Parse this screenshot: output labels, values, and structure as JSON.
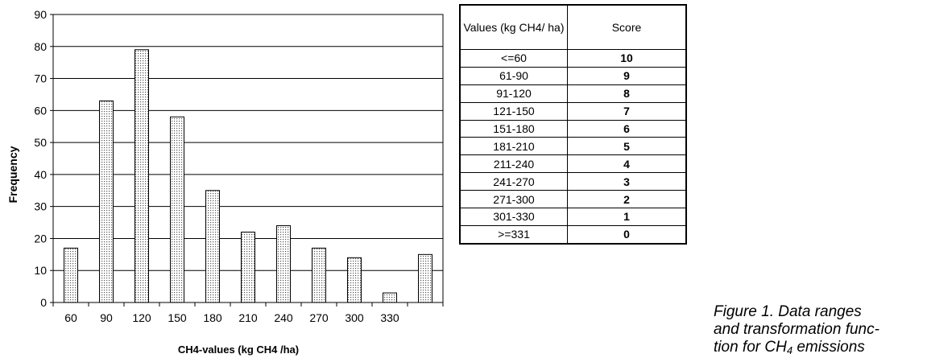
{
  "chart_data": {
    "type": "bar",
    "categories": [
      "60",
      "90",
      "120",
      "150",
      "180",
      "210",
      "240",
      "270",
      "300",
      "330",
      ""
    ],
    "values": [
      17,
      63,
      79,
      58,
      35,
      22,
      24,
      17,
      14,
      3,
      15
    ],
    "xlabel": "CH4-values (kg CH4 /ha)",
    "ylabel": "Frequency",
    "ylim": [
      0,
      90
    ],
    "yticks": [
      0,
      10,
      20,
      30,
      40,
      50,
      60,
      70,
      80,
      90
    ],
    "grid": true,
    "bar_fill": "dotted"
  },
  "score_table": {
    "headers": [
      "Values (kg CH4/ ha)",
      "Score"
    ],
    "rows": [
      {
        "range": "<=60",
        "score": "10"
      },
      {
        "range": "61-90",
        "score": "9"
      },
      {
        "range": "91-120",
        "score": "8"
      },
      {
        "range": "121-150",
        "score": "7"
      },
      {
        "range": "151-180",
        "score": "6"
      },
      {
        "range": "181-210",
        "score": "5"
      },
      {
        "range": "211-240",
        "score": "4"
      },
      {
        "range": "241-270",
        "score": "3"
      },
      {
        "range": "271-300",
        "score": "2"
      },
      {
        "range": "301-330",
        "score": "1"
      },
      {
        "range": ">=331",
        "score": "0"
      }
    ]
  },
  "caption": {
    "before_sub": "Figure 1. Data ranges\nand transformation func-\ntion for CH",
    "sub": "4",
    "after_sub": " emissions"
  }
}
